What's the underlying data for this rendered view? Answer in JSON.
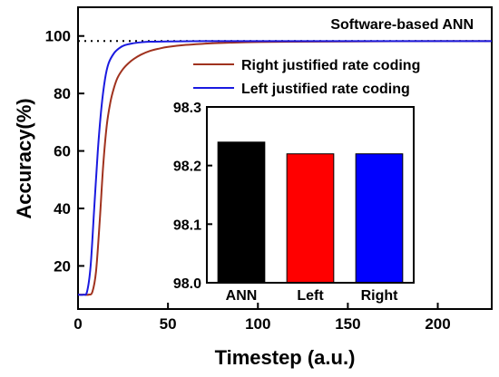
{
  "chart_data": [
    {
      "type": "line",
      "xlabel": "Timestep (a.u.)",
      "ylabel": "Accuracy(%)",
      "xlim": [
        0,
        230
      ],
      "ylim": [
        5,
        110
      ],
      "x_ticks": [
        0,
        50,
        100,
        150,
        200
      ],
      "y_ticks": [
        20,
        40,
        60,
        80,
        100
      ],
      "reference_line": {
        "label": "Software-based ANN",
        "y": 98.24,
        "style": "dotted",
        "color": "#000000"
      },
      "series": [
        {
          "name": "Right justified rate coding",
          "color": "#a0321e",
          "x": [
            0,
            3,
            6,
            8,
            10,
            12,
            14,
            16,
            18,
            20,
            22,
            25,
            28,
            31,
            35,
            40,
            45,
            50,
            60,
            70,
            80,
            100,
            120,
            150,
            200,
            230
          ],
          "y": [
            10,
            10,
            10,
            11,
            18,
            35,
            55,
            69,
            77,
            82,
            85.5,
            88.5,
            90.5,
            92,
            93.5,
            94.8,
            95.6,
            96.2,
            96.9,
            97.3,
            97.6,
            97.9,
            98.0,
            98.1,
            98.2,
            98.2
          ]
        },
        {
          "name": "Left justified rate coding",
          "color": "#1a1ae0",
          "x": [
            0,
            3,
            5,
            7,
            9,
            11,
            13,
            15,
            17,
            20,
            23,
            26,
            30,
            35,
            40,
            50,
            70,
            100,
            150,
            200,
            230
          ],
          "y": [
            10,
            10,
            11,
            20,
            40,
            60,
            75,
            85,
            90.5,
            94,
            95.8,
            96.8,
            97.4,
            97.8,
            98.0,
            98.1,
            98.2,
            98.2,
            98.2,
            98.2,
            98.2
          ]
        }
      ]
    },
    {
      "type": "bar",
      "categories": [
        "ANN",
        "Left",
        "Right"
      ],
      "values": [
        98.24,
        98.22,
        98.22
      ],
      "colors": [
        "#000000",
        "#ff0000",
        "#0000ff"
      ],
      "ylim": [
        98.0,
        98.3
      ],
      "y_ticks": [
        "98.0",
        "98.1",
        "98.2",
        "98.3"
      ]
    }
  ]
}
